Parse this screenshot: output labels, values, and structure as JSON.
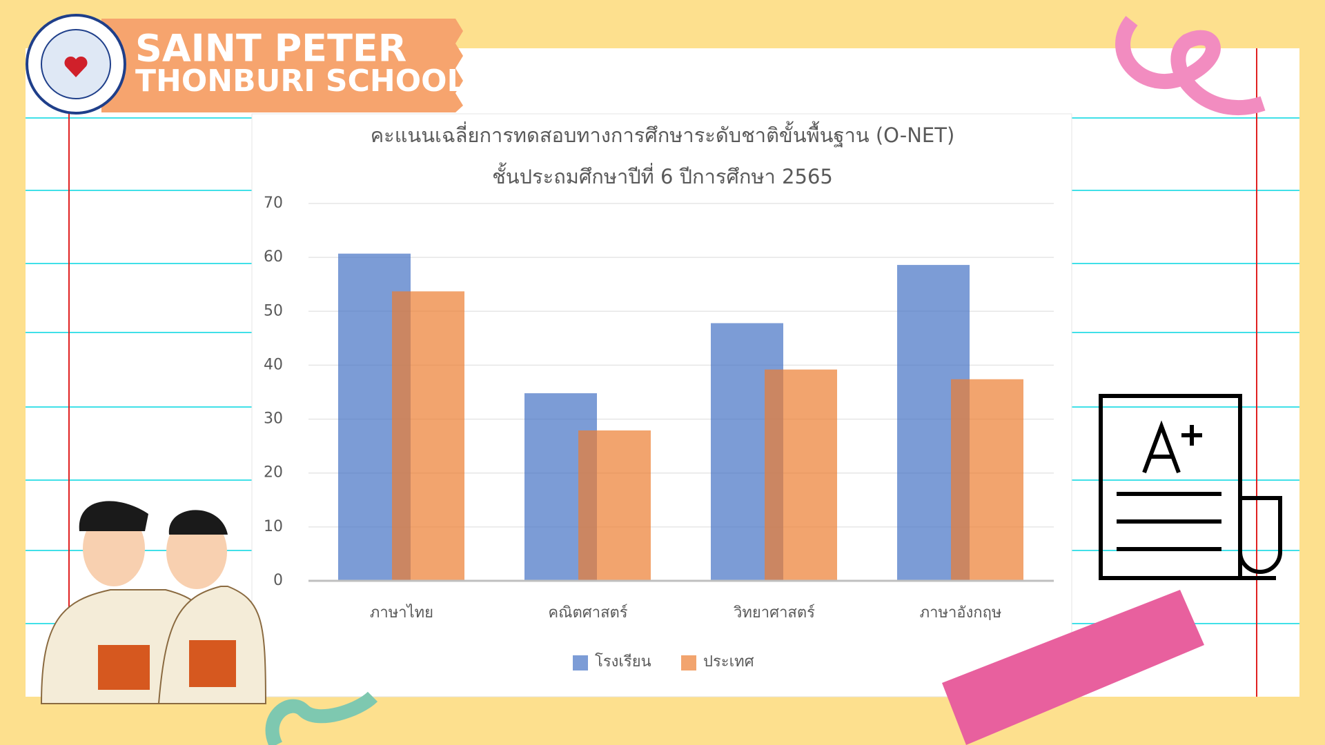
{
  "header": {
    "line1": "SAINT PETER",
    "line2": "THONBURI SCHOOL"
  },
  "chart_data": {
    "type": "bar",
    "title": "คะแนนเฉลี่ยการทดสอบทางการศึกษาระดับชาติขั้นพื้นฐาน (O-NET)",
    "subtitle": "ชั้นประถมศึกษาปีที่ 6 ปีการศึกษา 2565",
    "categories": [
      "ภาษาไทย",
      "คณิตศาสตร์",
      "วิทยาศาสตร์",
      "ภาษาอังกฤษ"
    ],
    "series": [
      {
        "name": "โรงเรียน",
        "color": "#4472c4",
        "values": [
          60.7,
          34.8,
          47.8,
          58.6
        ]
      },
      {
        "name": "ประเทศ",
        "color": "#ed7d31",
        "values": [
          53.7,
          27.9,
          39.2,
          37.4
        ]
      }
    ],
    "ylim": [
      0,
      70
    ],
    "yticks": [
      0,
      10,
      20,
      30,
      40,
      50,
      60,
      70
    ],
    "grid": true,
    "legend": "bottom"
  }
}
